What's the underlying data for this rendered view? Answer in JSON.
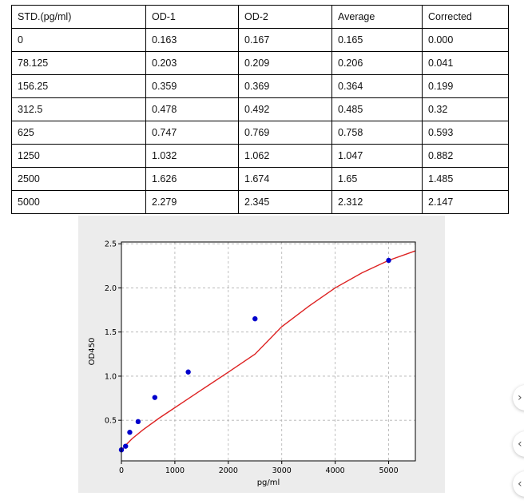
{
  "table": {
    "headers": [
      "STD.(pg/ml)",
      "OD-1",
      "OD-2",
      "Average",
      "Corrected"
    ],
    "rows": [
      [
        "0",
        "0.163",
        "0.167",
        "0.165",
        "0.000"
      ],
      [
        "78.125",
        "0.203",
        "0.209",
        "0.206",
        "0.041"
      ],
      [
        "156.25",
        "0.359",
        "0.369",
        "0.364",
        "0.199"
      ],
      [
        "312.5",
        "0.478",
        "0.492",
        "0.485",
        "0.32"
      ],
      [
        "625",
        "0.747",
        "0.769",
        "0.758",
        "0.593"
      ],
      [
        "1250",
        "1.032",
        "1.062",
        "1.047",
        "0.882"
      ],
      [
        "2500",
        "1.626",
        "1.674",
        "1.65",
        "1.485"
      ],
      [
        "5000",
        "2.279",
        "2.345",
        "2.312",
        "2.147"
      ]
    ]
  },
  "chart_data": {
    "type": "scatter",
    "title": "",
    "xlabel": "pg/ml",
    "ylabel": "OD450",
    "xlim": [
      0,
      5500
    ],
    "ylim": [
      0.04,
      2.52
    ],
    "xticks": [
      0,
      1000,
      2000,
      3000,
      4000,
      5000
    ],
    "yticks": [
      0.5,
      1.0,
      1.5,
      2.0,
      2.5
    ],
    "ytick_labels": [
      "0.5",
      "1.0",
      "1.5",
      "2.0",
      "2.5"
    ],
    "grid": true,
    "series": [
      {
        "kind": "points",
        "x": [
          0,
          78.125,
          156.25,
          312.5,
          625,
          1250,
          2500,
          5000
        ],
        "y": [
          0.165,
          0.206,
          0.364,
          0.485,
          0.758,
          1.047,
          1.65,
          2.312
        ],
        "color": "#0000cc"
      },
      {
        "kind": "fit-curve",
        "x": [
          0,
          50,
          100,
          200,
          400,
          700,
          1000,
          1500,
          2000,
          2500,
          3000,
          3500,
          4000,
          4500,
          5000,
          5500
        ],
        "y": [
          0.15,
          0.194,
          0.23,
          0.291,
          0.39,
          0.522,
          0.643,
          0.845,
          1.045,
          1.25,
          1.56,
          1.79,
          2.0,
          2.17,
          2.312,
          2.42
        ],
        "color": "#dd2222"
      }
    ]
  },
  "colors": {
    "plot_background": "#ececec",
    "axes_background": "#ffffff",
    "grid": "#b0b0b0",
    "curve": "#dd2222",
    "points": "#0000cc"
  },
  "side_buttons": [
    "›",
    "‹",
    "‹"
  ]
}
